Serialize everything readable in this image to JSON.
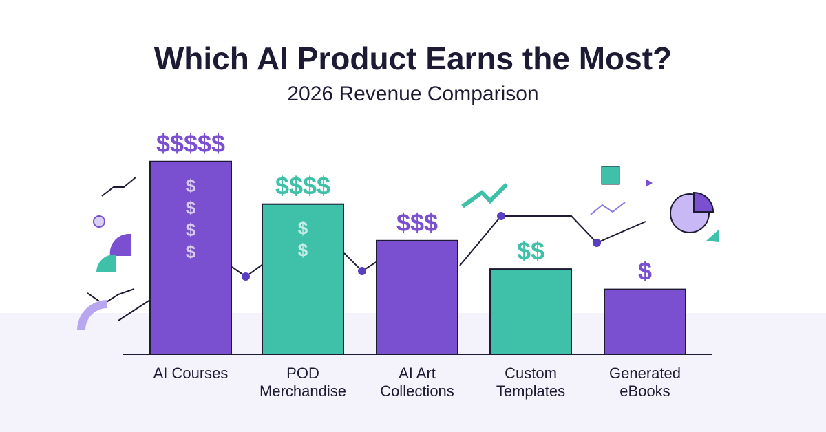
{
  "chart_data": {
    "type": "bar",
    "title": "Which AI Product Earns the Most?",
    "subtitle": "2026 Revenue Comparison",
    "categories": [
      "AI Courses",
      "POD Merchandise",
      "AI Art Collections",
      "Custom Templates",
      "Generated eBooks"
    ],
    "values": [
      95,
      74,
      56,
      42,
      32
    ],
    "value_labels": [
      "$$$$$",
      "$$$$",
      "$$$",
      "$$",
      "$"
    ],
    "bar_symbols": [
      [
        "$",
        "$",
        "$",
        "$"
      ],
      [
        "$",
        "$"
      ],
      [],
      [],
      []
    ],
    "colors": [
      "#7a4fd0",
      "#3fc0a9",
      "#7a4fd0",
      "#3fc0a9",
      "#7a4fd0"
    ],
    "ylim": [
      0,
      100
    ]
  }
}
